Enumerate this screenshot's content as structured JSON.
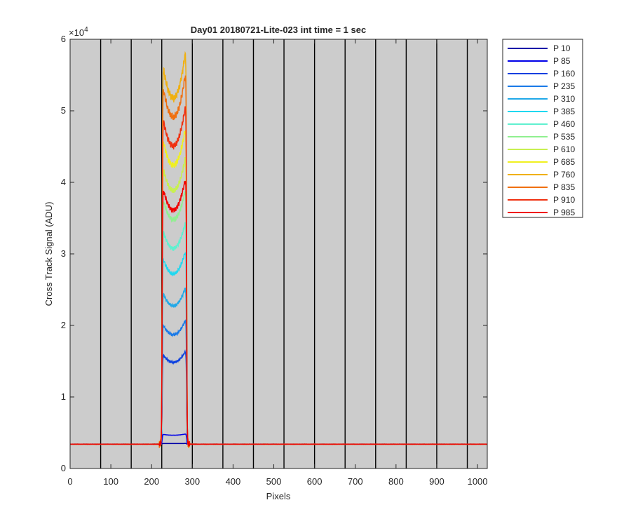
{
  "chart_data": {
    "type": "line",
    "title": "Day01 20180721-Lite-023 int time = 1 sec",
    "xlabel": "Pixels",
    "ylabel": "Cross Track Signal (ADU)",
    "y_exponent_label": "×10",
    "y_exponent_power": "4",
    "xlim": [
      0,
      1024
    ],
    "ylim": [
      0,
      60000
    ],
    "x_ticks": [
      0,
      100,
      200,
      300,
      400,
      500,
      600,
      700,
      800,
      900,
      1000
    ],
    "x_tick_labels": [
      "0",
      "100",
      "200",
      "300",
      "400",
      "500",
      "600",
      "700",
      "800",
      "900",
      "1000"
    ],
    "y_ticks": [
      0,
      10000,
      20000,
      30000,
      40000,
      50000,
      60000
    ],
    "y_tick_labels": [
      "0",
      "1",
      "2",
      "3",
      "4",
      "5",
      "6"
    ],
    "background_color": "#cccccc",
    "grid": false,
    "vertical_lines_x": [
      75,
      150,
      225,
      300,
      375,
      450,
      525,
      600,
      675,
      750,
      825,
      900,
      975
    ],
    "legend_position": "outside-top-right",
    "baseline": 3400,
    "signal_region": [
      225,
      285
    ],
    "series": [
      {
        "name": "P 10",
        "color": "#0000a8",
        "peak": 3500
      },
      {
        "name": "P 85",
        "color": "#0000e8",
        "peak": 4800
      },
      {
        "name": "P 160",
        "color": "#0a3fe0",
        "peak": 16200
      },
      {
        "name": "P 235",
        "color": "#1a7ae8",
        "peak": 20500
      },
      {
        "name": "P 310",
        "color": "#20a8e8",
        "peak": 25000
      },
      {
        "name": "P 385",
        "color": "#20d8f0",
        "peak": 30000
      },
      {
        "name": "P 460",
        "color": "#60f0d0",
        "peak": 34000
      },
      {
        "name": "P 535",
        "color": "#90f090",
        "peak": 38500
      },
      {
        "name": "P 610",
        "color": "#c8f050",
        "peak": 43000
      },
      {
        "name": "P 685",
        "color": "#f0f020",
        "peak": 47000
      },
      {
        "name": "P 760",
        "color": "#f0b010",
        "peak": 57500
      },
      {
        "name": "P 835",
        "color": "#f07010",
        "peak": 54500
      },
      {
        "name": "P 910",
        "color": "#f03010",
        "peak": 50000
      },
      {
        "name": "P 985",
        "color": "#f00000",
        "peak": 40000
      }
    ]
  }
}
